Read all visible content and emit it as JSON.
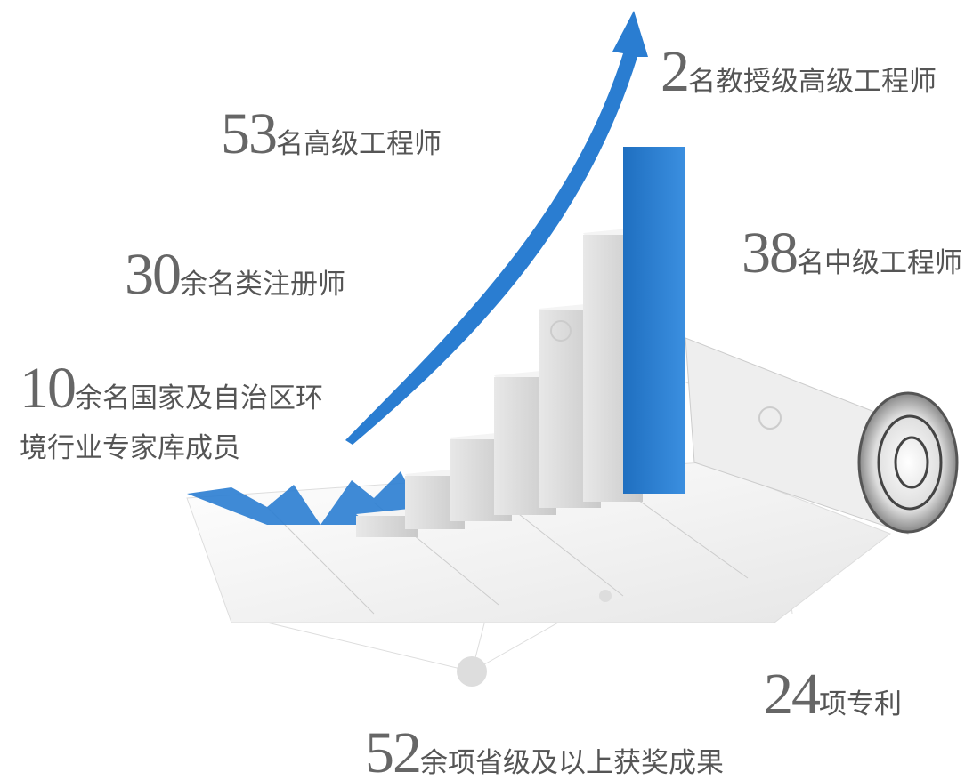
{
  "stats": [
    {
      "number": 2,
      "label": [
        "名教授级高级工程师"
      ]
    },
    {
      "number": 53,
      "label": [
        "名高级工程师"
      ]
    },
    {
      "number": 30,
      "label": [
        "余名类注册师"
      ]
    },
    {
      "number": 10,
      "label": [
        "余名国家及自治区环",
        "境行业专家库成员"
      ]
    },
    {
      "number": 38,
      "label": [
        "名中级工程师"
      ]
    },
    {
      "number": 24,
      "label": [
        "项专利"
      ]
    },
    {
      "number": 52,
      "label": [
        "余项省级及以上获奖成果"
      ]
    }
  ]
}
